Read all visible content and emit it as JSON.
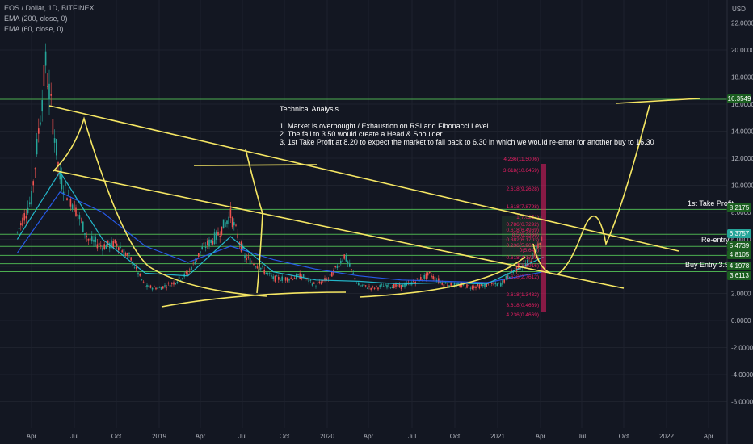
{
  "header": {
    "symbol_line": "EOS / Dollar, 1D, BITFINEX",
    "indicator_1": "EMA (200, close, 0)",
    "indicator_2": "EMA (60, close, 0)",
    "currency": "USD"
  },
  "analysis": {
    "title": "Technical Analysis",
    "point_1": "1. Market is overbought / Exhaustion on RSI and Fibonacci Level",
    "point_2": "2. The fall to 3.50 would create a Head & Shoulder",
    "point_3": "3. 1st Take Profit at 8.20 to expect the market to fall back to 6.30 in which we would re-enter for another buy to 16.30"
  },
  "zones": {
    "take_profit": "1st Take Profit",
    "re_entry": "Re-entry",
    "buy_entry": "Buy Entry 3.50"
  },
  "price_tags": {
    "p1": "16.3549",
    "p2": "8.2175",
    "p3": "6.3757",
    "p4": "5.4739",
    "p5": "4.8105",
    "p6": "4.1978",
    "p7": "3.6113"
  },
  "fib_labels": [
    "4.236(11.5006)",
    "3.618(10.6459)",
    "2.618(9.2628)",
    "1.618(7.8798)",
    "1(7.0251)",
    "0.786(6.7292)",
    "0.618(6.4969)",
    "0.5(6.3336)",
    "0.382(6.1703)",
    "0.236(5.9684)",
    "0(5.642)",
    "0.618(4.1795)",
    "1(3.5916)",
    "1.618(2.7612)",
    "2.618(1.3432)",
    "3.618(0.4669)",
    "4.236(0.4669)"
  ],
  "colors": {
    "background": "#131722",
    "candle_up": "#26a69a",
    "candle_down": "#ef5350",
    "ema_200": "#2962ff",
    "ema_60": "#26c6da",
    "zone_line": "#4caf50",
    "drawing": "#f5e663",
    "fib": "#e91e63",
    "label_green": "#1b5e20"
  },
  "chart_data": {
    "type": "line",
    "title": "EOS / Dollar, 1D, BITFINEX",
    "xlabel": "",
    "ylabel": "",
    "y_axis_ticks": [
      "22.0000",
      "20.0000",
      "18.0000",
      "16.0000",
      "14.0000",
      "12.0000",
      "10.0000",
      "8.0000",
      "6.0000",
      "4.0000",
      "2.0000",
      "0.0000",
      "-2.0000",
      "-4.0000",
      "-6.0000"
    ],
    "x_axis_ticks": [
      "Apr",
      "Jul",
      "Oct",
      "2019",
      "Apr",
      "Jul",
      "Oct",
      "2020",
      "Apr",
      "Jul",
      "Oct",
      "2021",
      "Apr",
      "Jul",
      "Oct",
      "2022",
      "Apr"
    ],
    "ylim": [
      -7.5,
      23.5
    ],
    "grid": true,
    "horizontal_levels": [
      16.3549,
      8.2175,
      6.3757,
      5.4739,
      4.8105,
      4.1978,
      3.6113
    ],
    "series": [
      {
        "name": "EOS / Dollar",
        "x": [
          "2018-03",
          "2018-04",
          "2018-05",
          "2018-06",
          "2018-07",
          "2018-08",
          "2018-09",
          "2018-10",
          "2018-11",
          "2018-12",
          "2019-01",
          "2019-02",
          "2019-03",
          "2019-04",
          "2019-05",
          "2019-06",
          "2019-07",
          "2019-08",
          "2019-09",
          "2019-10",
          "2019-11",
          "2019-12",
          "2020-01",
          "2020-02",
          "2020-03",
          "2020-04",
          "2020-05",
          "2020-06",
          "2020-07",
          "2020-08",
          "2020-09",
          "2020-10",
          "2020-11",
          "2020-12",
          "2021-01",
          "2021-02",
          "2021-03",
          "2021-04"
        ],
        "values": [
          6.5,
          9,
          19,
          10.5,
          8.5,
          6,
          5.5,
          5.7,
          4.5,
          2.5,
          2.4,
          2.8,
          3.5,
          5.3,
          6.2,
          7.8,
          4.7,
          4,
          3.1,
          3.1,
          3.3,
          2.6,
          3.2,
          4.8,
          2.6,
          2.4,
          2.6,
          2.5,
          2.9,
          3.4,
          2.7,
          2.6,
          2.5,
          2.6,
          2.7,
          3.8,
          4.4,
          6.2
        ]
      },
      {
        "name": "EMA (200, close, 0)",
        "x": [
          "2018-03",
          "2018-06",
          "2018-09",
          "2018-12",
          "2019-03",
          "2019-06",
          "2019-09",
          "2019-12",
          "2020-03",
          "2020-06",
          "2020-09",
          "2020-12",
          "2021-04"
        ],
        "values": [
          5,
          9.5,
          8,
          5.5,
          4.3,
          5.5,
          4.5,
          3.8,
          3.3,
          3,
          2.9,
          2.8,
          3.6
        ]
      },
      {
        "name": "EMA (60, close, 0)",
        "x": [
          "2018-03",
          "2018-06",
          "2018-09",
          "2018-12",
          "2019-03",
          "2019-06",
          "2019-09",
          "2019-12",
          "2020-03",
          "2020-06",
          "2020-09",
          "2020-12",
          "2021-04"
        ],
        "values": [
          6,
          11,
          6,
          3.5,
          3.3,
          6.2,
          3.6,
          3,
          2.9,
          2.7,
          2.8,
          2.7,
          4.7
        ]
      }
    ]
  }
}
